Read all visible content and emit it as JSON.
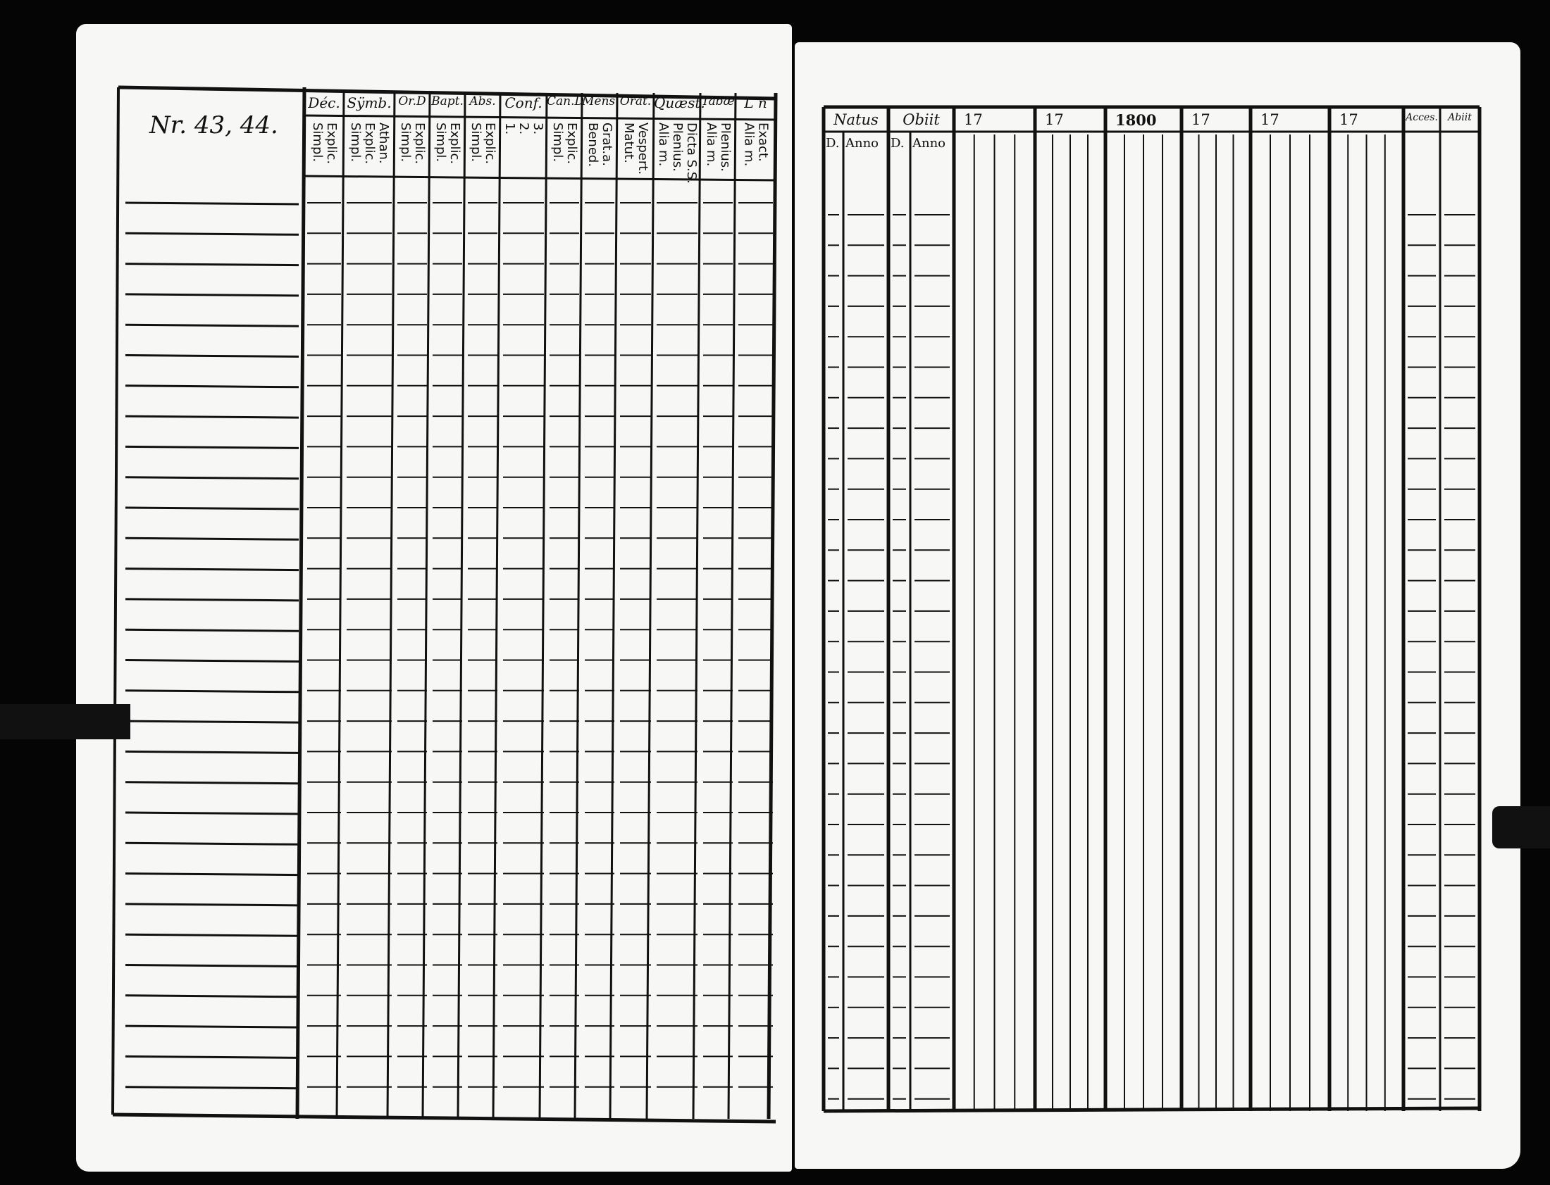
{
  "left_page": {
    "register_number": "Nr. 43, 44.",
    "columns": [
      {
        "title": "Déc.",
        "sub": [
          "Explic.",
          "Simpl."
        ]
      },
      {
        "title": "Sÿmb.",
        "sub": [
          "Athan.",
          "Explic.",
          "Simpl."
        ]
      },
      {
        "title": "Or.D",
        "sub": [
          "Explic.",
          "Simpl."
        ]
      },
      {
        "title": "Bapt.",
        "sub": [
          "Explic.",
          "Simpl."
        ]
      },
      {
        "title": "Abs.",
        "sub": [
          "Explic.",
          "Simpl."
        ]
      },
      {
        "title": "Conf.",
        "sub": [
          "3.",
          "2.",
          "1."
        ]
      },
      {
        "title": "Can.D",
        "sub": [
          "Explic.",
          "Simpl."
        ]
      },
      {
        "title": "Mens.",
        "sub": [
          "Grat.a.",
          "Bened."
        ]
      },
      {
        "title": "Orat.",
        "sub": [
          "Vespert.",
          "Matut."
        ]
      },
      {
        "title": "Quæst.",
        "sub": [
          "Dicta S.S.",
          "Plenius.",
          "Alia m."
        ]
      },
      {
        "title": "Tabæ",
        "sub": [
          "Plenius.",
          "Alia m."
        ]
      },
      {
        "title": "L n",
        "sub": [
          "Exact.",
          "Alia m."
        ]
      }
    ]
  },
  "right_page": {
    "columns": [
      {
        "title": "Natus",
        "sub": [
          "D.",
          "Anno"
        ]
      },
      {
        "title": "Obiit",
        "sub": [
          "D.",
          "Anno"
        ]
      },
      {
        "title": "17"
      },
      {
        "title": "17"
      },
      {
        "title": "1800"
      },
      {
        "title": "17"
      },
      {
        "title": "17"
      },
      {
        "title": "17"
      },
      {
        "title": "Acces."
      },
      {
        "title": "Abiit"
      }
    ]
  }
}
